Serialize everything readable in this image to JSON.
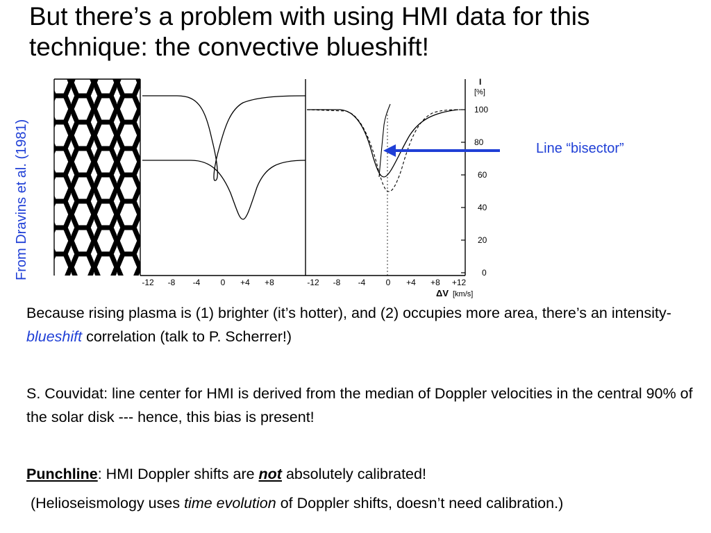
{
  "slide": {
    "title": "But there’s a problem with using HMI data for this technique: the convective blueshift!",
    "credit": "From Dravins et al. (1981)",
    "bisector_label": "Line “bisector”",
    "accent_color": "#1f3fd6"
  },
  "figure": {
    "left_axis_ticks": [
      "-12",
      "-8",
      "-4",
      "0",
      "+4",
      "+8"
    ],
    "right_axis_ticks": [
      "-12",
      "-8",
      "-4",
      "0",
      "+4",
      "+8",
      "+12"
    ],
    "y_ticks": [
      "100",
      "80",
      "60",
      "40",
      "20",
      "0"
    ],
    "y_label": "I",
    "y_unit": "[%]",
    "x_label": "ΔV",
    "x_unit": "[km/s]"
  },
  "body": {
    "p1_a": "Because rising plasma is (1) brighter (it’s hotter), and (2) occupies more area, there’s an intensity-",
    "p1_b": "blueshift",
    "p1_c": " correlation (talk to P. Scherrer!)",
    "p2": "S. Couvidat: line center for HMI is derived from the median of Doppler velocities in the central 90% of the solar disk --- hence, this bias is present!",
    "p3_a": "Punchline",
    "p3_b": ": HMI Doppler shifts are ",
    "p3_c": "not",
    "p3_d": " absolutely calibrated!",
    "p4_a": "(Helioseismology uses ",
    "p4_b": "time evolution",
    "p4_c": " of Doppler shifts, doesn’t need calibration.)"
  }
}
